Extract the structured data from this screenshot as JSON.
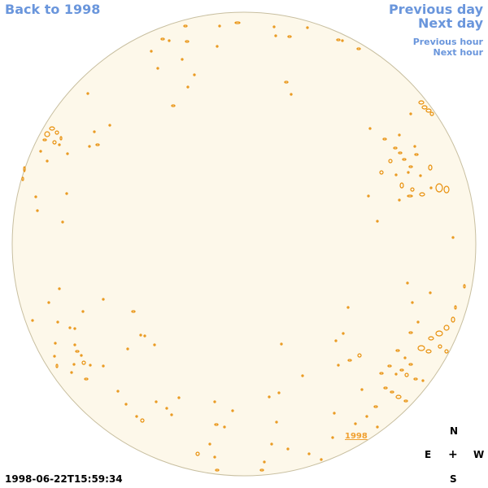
{
  "nav": {
    "back_label": "Back to 1998",
    "previous_day_label": "Previous day",
    "next_day_label": "Next day",
    "previous_hour_label": "Previous hour",
    "next_hour_label": "Next hour"
  },
  "timestamp": "1998-06-22T15:59:34",
  "year_link": "1998",
  "compass": {
    "north": "N",
    "east": "E",
    "center": "+",
    "west": "W",
    "south": "S"
  },
  "colors": {
    "disk_fill": "#fdf8ea",
    "disk_edge": "#c8bfa0",
    "feature": "#e8900c",
    "nav_link": "#6a96dc"
  },
  "icons": {
    "sun_disk": "solar-disk-icon",
    "feature_contour": "magnetic-feature-contour"
  }
}
